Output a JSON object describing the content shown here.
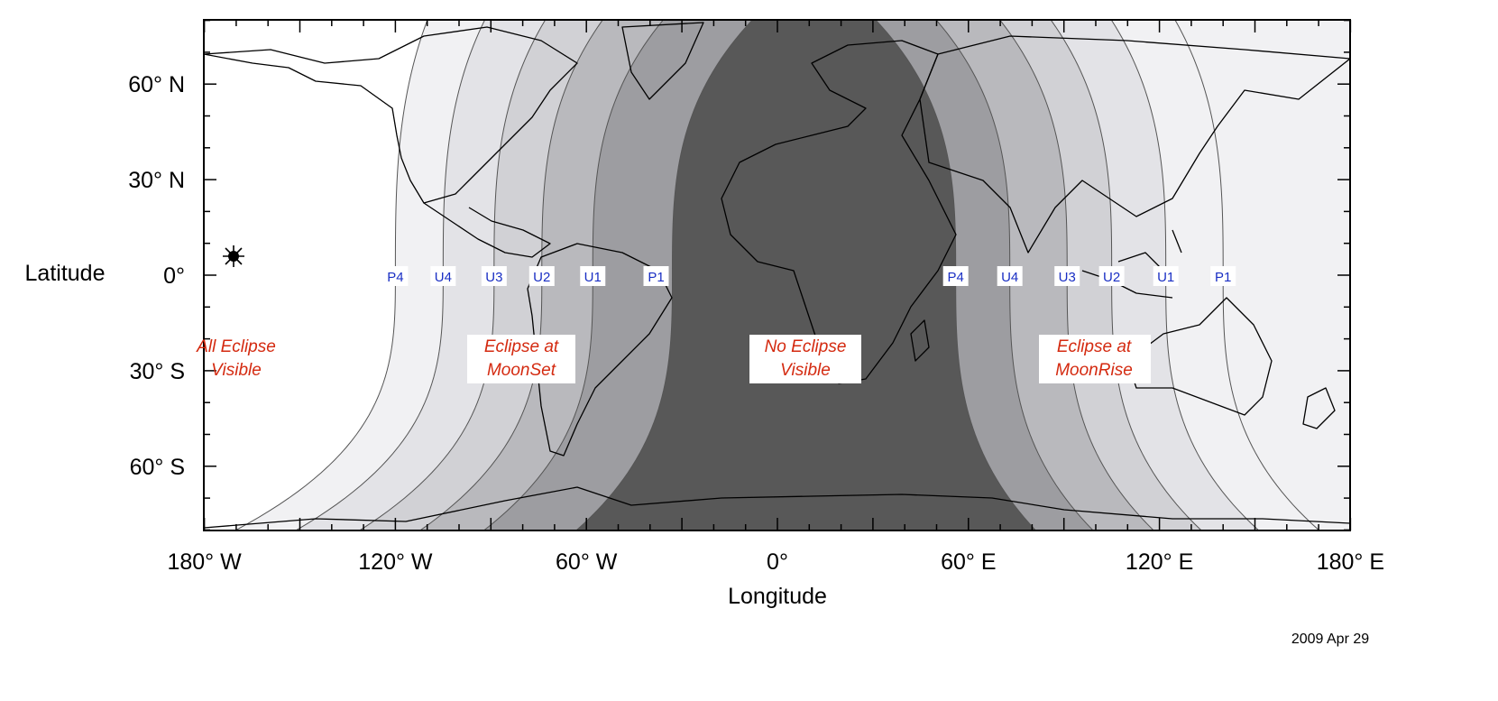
{
  "map": {
    "projection": "equirectangular",
    "lon_range": [
      -180,
      180
    ],
    "lat_range": [
      -80,
      80
    ],
    "date": "2009 Apr 29",
    "x_axis": {
      "label": "Longitude",
      "ticks": [
        {
          "lon": -180,
          "label": "180° W"
        },
        {
          "lon": -120,
          "label": "120° W"
        },
        {
          "lon": -60,
          "label": "60° W"
        },
        {
          "lon": 0,
          "label": "0°"
        },
        {
          "lon": 60,
          "label": "60° E"
        },
        {
          "lon": 120,
          "label": "120° E"
        },
        {
          "lon": 180,
          "label": "180° E"
        }
      ]
    },
    "y_axis": {
      "label": "Latitude",
      "ticks": [
        {
          "lat": 60,
          "label": "60° N"
        },
        {
          "lat": 30,
          "label": "30° N"
        },
        {
          "lat": 0,
          "label": "0°"
        },
        {
          "lat": -30,
          "label": "30° S"
        },
        {
          "lat": -60,
          "label": "60° S"
        }
      ]
    },
    "contact_lines_west": [
      {
        "label": "P4",
        "lon_at_equator": -120
      },
      {
        "label": "U4",
        "lon_at_equator": -105
      },
      {
        "label": "U3",
        "lon_at_equator": -89
      },
      {
        "label": "U2",
        "lon_at_equator": -74
      },
      {
        "label": "U1",
        "lon_at_equator": -58
      },
      {
        "label": "P1",
        "lon_at_equator": -33
      }
    ],
    "contact_lines_east": [
      {
        "label": "P4",
        "lon_at_equator": 56
      },
      {
        "label": "U4",
        "lon_at_equator": 73
      },
      {
        "label": "U3",
        "lon_at_equator": 91
      },
      {
        "label": "U2",
        "lon_at_equator": 105
      },
      {
        "label": "U1",
        "lon_at_equator": 122
      },
      {
        "label": "P1",
        "lon_at_equator": 140
      }
    ],
    "region_labels": {
      "all_visible": [
        "All Eclipse",
        "Visible"
      ],
      "moonset": [
        "Eclipse at",
        "MoonSet"
      ],
      "none": [
        "No Eclipse",
        "Visible"
      ],
      "moonrise": [
        "Eclipse at",
        "MoonRise"
      ]
    },
    "colors": {
      "no_eclipse": "#585858",
      "contact_label": "#1a2fc4",
      "region_label": "#d42a10",
      "bands": [
        "#ffffff",
        "#f1f1f3",
        "#e3e3e7",
        "#d1d1d5",
        "#b9b9bd",
        "#9d9da1"
      ]
    },
    "subsolar_point_icon": "sun-symbol"
  }
}
